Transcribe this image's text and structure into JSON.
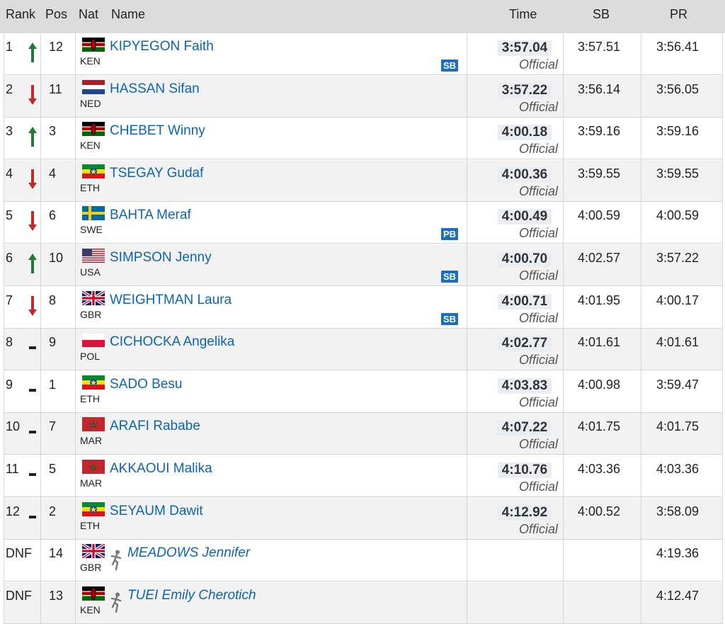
{
  "headers": {
    "rank": "Rank",
    "pos": "Pos",
    "nat": "Nat",
    "name": "Name",
    "time": "Time",
    "sb": "SB",
    "pr": "PR"
  },
  "colors": {
    "link": "#0b64b8",
    "up": "#1f7a3a",
    "down": "#c62828",
    "badge": "#1b6fbd",
    "header_bg": "#dcdcdc"
  },
  "rows": [
    {
      "rank": "1",
      "trend": "up",
      "pos": "12",
      "nat": "KEN",
      "flag": "kenya-flag",
      "name": "KIPYEGON Faith",
      "time": "3:57.04",
      "status": "Official",
      "sb": "3:57.51",
      "pr": "3:56.41",
      "badge": "SB"
    },
    {
      "rank": "2",
      "trend": "down",
      "pos": "11",
      "nat": "NED",
      "flag": "netherlands-flag",
      "name": "HASSAN Sifan",
      "time": "3:57.22",
      "status": "Official",
      "sb": "3:56.14",
      "pr": "3:56.05"
    },
    {
      "rank": "3",
      "trend": "up",
      "pos": "3",
      "nat": "KEN",
      "flag": "kenya-flag",
      "name": "CHEBET Winny",
      "time": "4:00.18",
      "status": "Official",
      "sb": "3:59.16",
      "pr": "3:59.16"
    },
    {
      "rank": "4",
      "trend": "down",
      "pos": "4",
      "nat": "ETH",
      "flag": "ethiopia-flag",
      "name": "TSEGAY Gudaf",
      "time": "4:00.36",
      "status": "Official",
      "sb": "3:59.55",
      "pr": "3:59.55"
    },
    {
      "rank": "5",
      "trend": "down",
      "pos": "6",
      "nat": "SWE",
      "flag": "sweden-flag",
      "name": "BAHTA Meraf",
      "time": "4:00.49",
      "status": "Official",
      "sb": "4:00.59",
      "pr": "4:00.59",
      "badge": "PB"
    },
    {
      "rank": "6",
      "trend": "up",
      "pos": "10",
      "nat": "USA",
      "flag": "usa-flag",
      "name": "SIMPSON Jenny",
      "time": "4:00.70",
      "status": "Official",
      "sb": "4:02.57",
      "pr": "3:57.22",
      "badge": "SB"
    },
    {
      "rank": "7",
      "trend": "down",
      "pos": "8",
      "nat": "GBR",
      "flag": "uk-flag",
      "name": "WEIGHTMAN Laura",
      "time": "4:00.71",
      "status": "Official",
      "sb": "4:01.95",
      "pr": "4:00.17",
      "badge": "SB"
    },
    {
      "rank": "8",
      "trend": "same",
      "pos": "9",
      "nat": "POL",
      "flag": "poland-flag",
      "name": "CICHOCKA Angelika",
      "time": "4:02.77",
      "status": "Official",
      "sb": "4:01.61",
      "pr": "4:01.61"
    },
    {
      "rank": "9",
      "trend": "same",
      "pos": "1",
      "nat": "ETH",
      "flag": "ethiopia-flag",
      "name": "SADO Besu",
      "time": "4:03.83",
      "status": "Official",
      "sb": "4:00.98",
      "pr": "3:59.47"
    },
    {
      "rank": "10",
      "trend": "same",
      "pos": "7",
      "nat": "MAR",
      "flag": "morocco-flag",
      "name": "ARAFI Rababe",
      "time": "4:07.22",
      "status": "Official",
      "sb": "4:01.75",
      "pr": "4:01.75"
    },
    {
      "rank": "11",
      "trend": "same",
      "pos": "5",
      "nat": "MAR",
      "flag": "morocco-flag",
      "name": "AKKAOUI Malika",
      "time": "4:10.76",
      "status": "Official",
      "sb": "4:03.36",
      "pr": "4:03.36"
    },
    {
      "rank": "12",
      "trend": "same",
      "pos": "2",
      "nat": "ETH",
      "flag": "ethiopia-flag",
      "name": "SEYAUM Dawit",
      "time": "4:12.92",
      "status": "Official",
      "sb": "4:00.52",
      "pr": "3:58.09"
    },
    {
      "rank": "DNF",
      "trend": "none",
      "pos": "14",
      "nat": "GBR",
      "flag": "uk-flag",
      "name": "MEADOWS Jennifer",
      "dnf": true,
      "pr": "4:19.36"
    },
    {
      "rank": "DNF",
      "trend": "none",
      "pos": "13",
      "nat": "KEN",
      "flag": "kenya-flag",
      "name": "TUEI Emily Cherotich",
      "dnf": true,
      "pr": "4:12.47"
    }
  ]
}
